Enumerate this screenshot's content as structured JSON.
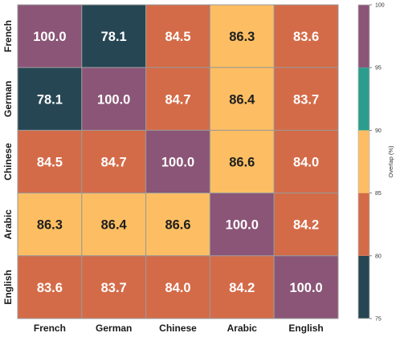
{
  "chart_data": {
    "type": "heatmap",
    "x_labels": [
      "French",
      "German",
      "Chinese",
      "Arabic",
      "English"
    ],
    "y_labels": [
      "French",
      "German",
      "Chinese",
      "Arabic",
      "English"
    ],
    "values": [
      [
        100.0,
        78.1,
        84.5,
        86.3,
        83.6
      ],
      [
        78.1,
        100.0,
        84.7,
        86.4,
        83.7
      ],
      [
        84.5,
        84.7,
        100.0,
        86.6,
        84.0
      ],
      [
        86.3,
        86.4,
        86.6,
        100.0,
        84.2
      ],
      [
        83.6,
        83.7,
        84.0,
        84.2,
        100.0
      ]
    ],
    "value_format": "1 decimal",
    "colorbar": {
      "label": "Overlap (%)",
      "range": [
        75,
        100
      ],
      "ticks": [
        "75",
        "80",
        "85",
        "90",
        "95",
        "100"
      ],
      "bins": [
        {
          "from": 75,
          "to": 80,
          "color": "#264653"
        },
        {
          "from": 80,
          "to": 85,
          "color": "#d46b48"
        },
        {
          "from": 85,
          "to": 90,
          "color": "#fdbe63"
        },
        {
          "from": 90,
          "to": 95,
          "color": "#2a9d8f"
        },
        {
          "from": 95,
          "to": 100,
          "color": "#8b5577"
        }
      ]
    },
    "text_colors": {
      "light": "#ffffff",
      "dark": "#1f1f1f"
    },
    "grid_color": "#999999"
  }
}
